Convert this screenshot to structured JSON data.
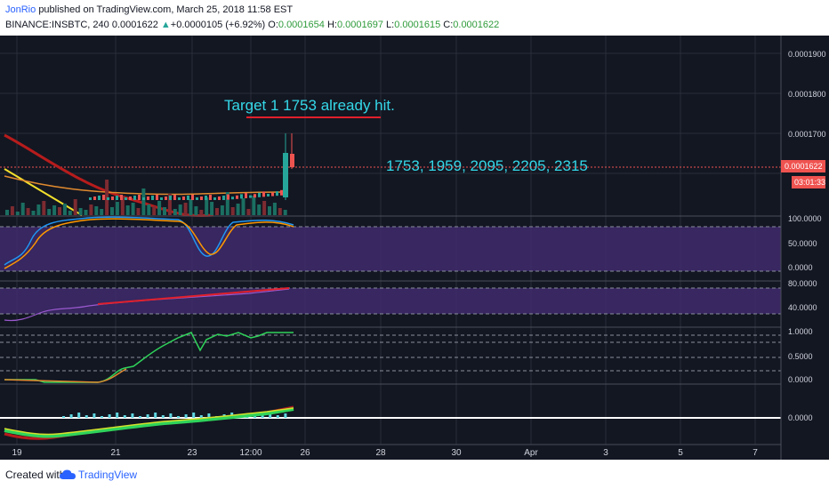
{
  "header": {
    "author": "JonRio",
    "published": "published on TradingView.com, March 25, 2018 11:58 EST",
    "symbol": "BINANCE:INSBTC, 240",
    "last": "0.0001622",
    "change": "+0.0000105 (+6.92%)",
    "o_label": "O:",
    "o_value": "0.0001654",
    "h_label": "H:",
    "h_value": "0.0001697",
    "l_label": "L:",
    "l_value": "0.0001615",
    "c_label": "C:",
    "c_value": "0.0001622"
  },
  "footer": {
    "created_with": "Created with",
    "brand": "TradingView"
  },
  "colors": {
    "background": "#131722",
    "grid": "#2a2e39",
    "annotation": "#35d8e8",
    "annotation_underline": "#e0202c",
    "price_line": "#ef5350",
    "up": "#26a69a",
    "down": "#ef5350",
    "stoch_k": "#2196f3",
    "stoch_d": "#ff9800",
    "band_fill": "#3f2a6b"
  },
  "chart_data": {
    "type": "candlestick",
    "symbol": "BINANCE:INSBTC",
    "interval": "240",
    "x_tick_labels": [
      "19",
      "21",
      "23",
      "12:00",
      "26",
      "28",
      "30",
      "Apr",
      "3",
      "5",
      "7"
    ],
    "price_axis": {
      "tick_labels": [
        "0.0001900",
        "0.0001800",
        "0.0001700"
      ],
      "last_price_label": "0.0001622",
      "countdown_label": "03:01:33"
    },
    "annotations": {
      "target_text": "Target 1 1753 already hit.",
      "targets_text": "1753, 1959, 2095, 2205, 2315"
    },
    "candles": [
      {
        "open": 0.0001654,
        "high": 0.0001697,
        "low": 0.0001615,
        "close": 0.0001622,
        "note": "last bar"
      }
    ],
    "panels": [
      {
        "name": "stochastic",
        "tick_labels": [
          "100.0000",
          "50.0000",
          "0.0000"
        ]
      },
      {
        "name": "rsi",
        "tick_labels": [
          "80.0000",
          "40.0000"
        ]
      },
      {
        "name": "oscillator",
        "tick_labels": [
          "1.0000",
          "0.5000",
          "0.0000"
        ]
      },
      {
        "name": "macd",
        "tick_labels": [
          "0.0000"
        ]
      }
    ]
  }
}
